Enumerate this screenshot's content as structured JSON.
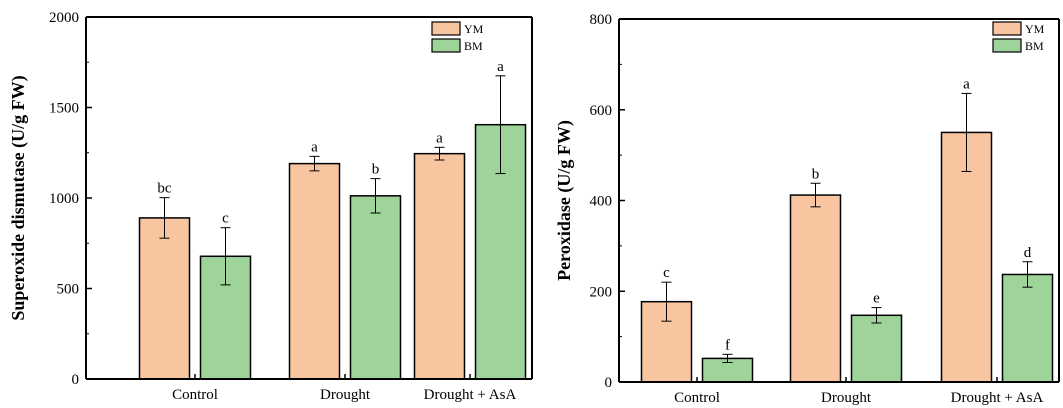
{
  "chart_data": [
    {
      "type": "bar",
      "categories": [
        "Control",
        "Drought",
        "Drought + AsA"
      ],
      "ylabel": "Superoxide dismutase (U/g FW)",
      "ylim": [
        0,
        2000
      ],
      "yticks": [
        0,
        500,
        1000,
        1500,
        2000
      ],
      "legend_position": "top-right",
      "series": [
        {
          "name": "YM",
          "color": "#f7c59f",
          "values": [
            890,
            1190,
            1245
          ],
          "errors": [
            112,
            40,
            35
          ],
          "letters": [
            "bc",
            "a",
            "a"
          ]
        },
        {
          "name": "BM",
          "color": "#9ed39a",
          "values": [
            678,
            1012,
            1405
          ],
          "errors": [
            158,
            95,
            270
          ],
          "letters": [
            "c",
            "b",
            "a"
          ]
        }
      ]
    },
    {
      "type": "bar",
      "categories": [
        "Control",
        "Drought",
        "Drought + AsA"
      ],
      "ylabel": "Peroxidase (U/g FW)",
      "ylim": [
        0,
        800
      ],
      "yticks": [
        0,
        200,
        400,
        600,
        800
      ],
      "legend_position": "top-right",
      "series": [
        {
          "name": "YM",
          "color": "#f7c59f",
          "values": [
            177,
            412,
            550
          ],
          "errors": [
            43,
            26,
            86
          ],
          "letters": [
            "c",
            "b",
            "a"
          ]
        },
        {
          "name": "BM",
          "color": "#9ed39a",
          "values": [
            52,
            147,
            237
          ],
          "errors": [
            9,
            17,
            28
          ],
          "letters": [
            "f",
            "e",
            "d"
          ]
        }
      ]
    }
  ]
}
